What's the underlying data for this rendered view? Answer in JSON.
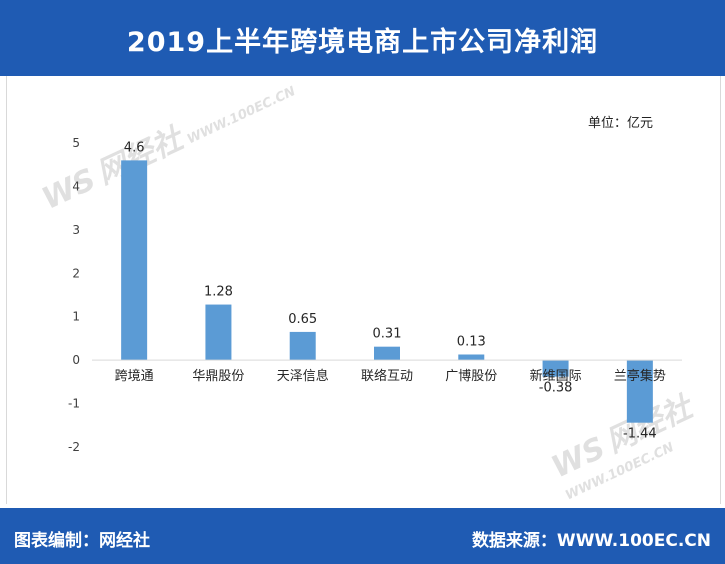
{
  "header": {
    "title": "2019上半年跨境电商上市公司净利润"
  },
  "unit_label": "单位：亿元",
  "footer": {
    "left": "图表编制：网经社",
    "right": "数据来源：WWW.100EC.CN"
  },
  "watermark": {
    "mark": "WS",
    "name": "网经社",
    "url": "WWW.100EC.CN"
  },
  "colors": {
    "header_bg": "#1f5bb3",
    "bar": "#5b9bd5",
    "axis_text": "#404040",
    "gridline": "#d9d9d9"
  },
  "chart_data": {
    "type": "bar",
    "title": "2019上半年跨境电商上市公司净利润",
    "xlabel": "",
    "ylabel": "",
    "unit": "单位：亿元",
    "categories": [
      "跨境通",
      "华鼎股份",
      "天泽信息",
      "联络互动",
      "广博股份",
      "新维国际",
      "兰亭集势"
    ],
    "values": [
      4.6,
      1.28,
      0.65,
      0.31,
      0.13,
      -0.38,
      -1.44
    ],
    "data_labels": [
      "4.6",
      "1.28",
      "0.65",
      "0.31",
      "0.13",
      "-0.38",
      "-1.44"
    ],
    "ylim": [
      -2,
      5
    ],
    "yticks": [
      5,
      4,
      3,
      2,
      1,
      0,
      -1,
      -2
    ],
    "ytick_labels": [
      "5",
      "4",
      "3",
      "2",
      "1",
      "0",
      "-1",
      "-2"
    ],
    "grid": false,
    "legend": "none"
  }
}
